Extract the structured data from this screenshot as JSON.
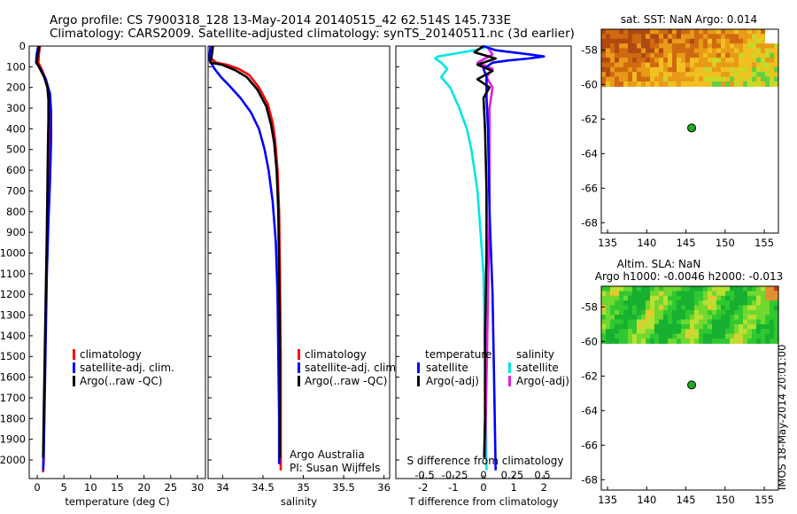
{
  "header": {
    "line1": "Argo profile: CS 7900318_128 13-May-2014 20140515_42 62.514S 145.733E",
    "line2": "Climatology: CARS2009. Satellite-adjusted climatology: synTS_20140511.nc (3d earlier)"
  },
  "colors": {
    "climatology": "#ff0000",
    "satellite": "#0000ff",
    "argo": "#000000",
    "s_satellite": "#00e5e5",
    "s_argo": "#e020e0",
    "marker": "#22aa22"
  },
  "chart_data": [
    {
      "type": "line",
      "id": "temperature",
      "xlabel": "temperature (deg C)",
      "xticks": [
        0,
        5,
        10,
        15,
        20,
        25,
        30
      ],
      "xlim": [
        -1.5,
        31.5
      ],
      "ylim": [
        0,
        2090
      ],
      "yticks": [
        0,
        100,
        200,
        300,
        400,
        500,
        600,
        700,
        800,
        900,
        1000,
        1100,
        1200,
        1300,
        1400,
        1500,
        1600,
        1700,
        1800,
        1900,
        2000
      ],
      "legend": [
        "climatology",
        "satellite-adj. clim.",
        "Argo(..raw -QC)"
      ],
      "series": [
        {
          "name": "climatology",
          "color": "#ff0000",
          "points": [
            [
              0.5,
              0
            ],
            [
              0.3,
              40
            ],
            [
              0.2,
              80
            ],
            [
              0.8,
              110
            ],
            [
              1.6,
              160
            ],
            [
              2.1,
              220
            ],
            [
              2.2,
              300
            ],
            [
              2.2,
              420
            ],
            [
              2.1,
              600
            ],
            [
              2.0,
              800
            ],
            [
              1.8,
              1000
            ],
            [
              1.6,
              1300
            ],
            [
              1.4,
              1600
            ],
            [
              1.2,
              1900
            ],
            [
              1.1,
              2060
            ]
          ]
        },
        {
          "name": "satellite-adj. clim.",
          "color": "#0000ff",
          "points": [
            [
              0.2,
              0
            ],
            [
              -0.1,
              40
            ],
            [
              -0.2,
              80
            ],
            [
              0.5,
              105
            ],
            [
              1.6,
              160
            ],
            [
              2.4,
              230
            ],
            [
              2.6,
              320
            ],
            [
              2.6,
              450
            ],
            [
              2.4,
              650
            ],
            [
              2.1,
              850
            ],
            [
              1.8,
              1100
            ],
            [
              1.6,
              1400
            ],
            [
              1.4,
              1700
            ],
            [
              1.2,
              2000
            ],
            [
              1.1,
              2050
            ]
          ]
        },
        {
          "name": "Argo(..raw -QC)",
          "color": "#000000",
          "points": [
            [
              0.4,
              0
            ],
            [
              0.1,
              40
            ],
            [
              -0.1,
              80
            ],
            [
              0.4,
              105
            ],
            [
              1.3,
              150
            ],
            [
              1.9,
              200
            ],
            [
              2.1,
              260
            ],
            [
              2.1,
              350
            ],
            [
              2.0,
              500
            ],
            [
              1.9,
              700
            ],
            [
              1.8,
              900
            ],
            [
              1.6,
              1200
            ],
            [
              1.4,
              1500
            ],
            [
              1.2,
              1800
            ],
            [
              1.1,
              1990
            ]
          ]
        }
      ]
    },
    {
      "type": "line",
      "id": "salinity",
      "xlabel": "salinity",
      "xticks": [
        34,
        34.5,
        35,
        35.5,
        36
      ],
      "xlim": [
        33.82,
        36.07
      ],
      "ylim": [
        0,
        2090
      ],
      "legend": [
        "climatology",
        "satellite-adj. clim.",
        "Argo(..raw -QC)"
      ],
      "annotation": [
        "Argo Australia",
        "PI: Susan Wijffels"
      ],
      "series": [
        {
          "name": "climatology",
          "color": "#ff0000",
          "points": [
            [
              33.88,
              0
            ],
            [
              33.86,
              60
            ],
            [
              33.92,
              80
            ],
            [
              34.05,
              90
            ],
            [
              34.2,
              110
            ],
            [
              34.33,
              140
            ],
            [
              34.45,
              200
            ],
            [
              34.56,
              280
            ],
            [
              34.62,
              370
            ],
            [
              34.65,
              450
            ],
            [
              34.68,
              600
            ],
            [
              34.7,
              800
            ],
            [
              34.71,
              1100
            ],
            [
              34.72,
              1500
            ],
            [
              34.72,
              2050
            ]
          ]
        },
        {
          "name": "satellite-adj. clim.",
          "color": "#0000ff",
          "points": [
            [
              33.85,
              0
            ],
            [
              33.84,
              40
            ],
            [
              33.84,
              70
            ],
            [
              33.9,
              110
            ],
            [
              33.98,
              150
            ],
            [
              34.08,
              190
            ],
            [
              34.22,
              250
            ],
            [
              34.35,
              320
            ],
            [
              34.45,
              400
            ],
            [
              34.52,
              500
            ],
            [
              34.57,
              600
            ],
            [
              34.62,
              750
            ],
            [
              34.66,
              950
            ],
            [
              34.68,
              1200
            ],
            [
              34.69,
              1500
            ],
            [
              34.7,
              1800
            ],
            [
              34.7,
              2020
            ]
          ]
        },
        {
          "name": "Argo(..raw -QC)",
          "color": "#000000",
          "points": [
            [
              33.88,
              0
            ],
            [
              33.86,
              60
            ],
            [
              33.85,
              80
            ],
            [
              33.99,
              90
            ],
            [
              34.15,
              115
            ],
            [
              34.3,
              150
            ],
            [
              34.43,
              210
            ],
            [
              34.54,
              290
            ],
            [
              34.6,
              380
            ],
            [
              34.64,
              470
            ],
            [
              34.67,
              600
            ],
            [
              34.69,
              800
            ],
            [
              34.7,
              1100
            ],
            [
              34.71,
              1500
            ],
            [
              34.71,
              1990
            ]
          ]
        }
      ]
    },
    {
      "type": "line",
      "id": "difference",
      "xlabel": "T difference from climatology",
      "xticks": [
        -2,
        -1,
        0,
        1,
        2
      ],
      "xlim": [
        -2.9,
        2.9
      ],
      "top_axis_label": "S difference from climatology",
      "top_ticks": [
        {
          "label": "-0.5",
          "t": -1.95
        },
        {
          "label": "-0.25",
          "t": -0.95
        },
        {
          "label": "0",
          "t": 0
        },
        {
          "label": "0.25",
          "t": 0.95
        },
        {
          "label": "0.5",
          "t": 1.95
        }
      ],
      "ylim": [
        0,
        2090
      ],
      "legend": {
        "temperature": [
          "satellite",
          "Argo(-adj)"
        ],
        "salinity": [
          "satellite",
          "Argo(-adj)"
        ]
      },
      "series": [
        {
          "name": "satellite (S)",
          "color": "#00e5e5",
          "points": [
            [
              0.2,
              0
            ],
            [
              -0.3,
              20
            ],
            [
              -1.5,
              50
            ],
            [
              -1.6,
              60
            ],
            [
              -1.4,
              80
            ],
            [
              -1.2,
              110
            ],
            [
              -1.4,
              150
            ],
            [
              -1.1,
              200
            ],
            [
              -0.8,
              300
            ],
            [
              -0.55,
              400
            ],
            [
              -0.4,
              500
            ],
            [
              -0.3,
              600
            ],
            [
              -0.2,
              700
            ],
            [
              -0.1,
              900
            ],
            [
              0,
              1100
            ],
            [
              0.05,
              1500
            ],
            [
              0.1,
              2050
            ]
          ]
        },
        {
          "name": "Argo(-adj) (S)",
          "color": "#e020e0",
          "points": [
            [
              0.1,
              0
            ],
            [
              0.3,
              40
            ],
            [
              -0.2,
              80
            ],
            [
              0.3,
              110
            ],
            [
              0.1,
              150
            ],
            [
              0.3,
              200
            ],
            [
              0.2,
              300
            ],
            [
              0.2,
              500
            ],
            [
              0.2,
              800
            ],
            [
              0.15,
              1200
            ],
            [
              0.1,
              1600
            ],
            [
              0.05,
              1990
            ]
          ]
        },
        {
          "name": "satellite (T)",
          "color": "#0000ff",
          "points": [
            [
              0,
              0
            ],
            [
              0.4,
              20
            ],
            [
              1.5,
              40
            ],
            [
              2.0,
              50
            ],
            [
              1.5,
              60
            ],
            [
              0.8,
              70
            ],
            [
              0.3,
              80
            ],
            [
              0,
              110
            ],
            [
              0.1,
              150
            ],
            [
              0.1,
              250
            ],
            [
              0.15,
              400
            ],
            [
              0.2,
              800
            ],
            [
              0.3,
              1200
            ],
            [
              0.35,
              1600
            ],
            [
              0.4,
              2050
            ]
          ]
        },
        {
          "name": "Argo(-adj) (T)",
          "color": "#000000",
          "points": [
            [
              0,
              0
            ],
            [
              -0.3,
              30
            ],
            [
              0.4,
              60
            ],
            [
              -0.2,
              90
            ],
            [
              0.3,
              120
            ],
            [
              -0.2,
              160
            ],
            [
              0.2,
              200
            ],
            [
              0,
              250
            ],
            [
              0.05,
              400
            ],
            [
              0.1,
              700
            ],
            [
              0.1,
              1000
            ],
            [
              0.05,
              1400
            ],
            [
              0.05,
              1800
            ],
            [
              0.02,
              1990
            ]
          ]
        }
      ]
    },
    {
      "type": "heatmap",
      "id": "sst",
      "title": "sat. SST: NaN Argo: 0.014",
      "xticks": [
        135,
        140,
        145,
        150,
        155
      ],
      "yticks": [
        -58,
        -60,
        -62,
        -64,
        -66,
        -68
      ],
      "xlim": [
        134.2,
        156.8
      ],
      "ylim": [
        -68.6,
        -56.8
      ],
      "data_extent": [
        -60.1,
        -56.8
      ],
      "argo_position": [
        145.733,
        -62.514
      ]
    },
    {
      "type": "heatmap",
      "id": "sla",
      "title": "Altim. SLA: NaN",
      "subtitle": "Argo h1000: -0.0046 h2000: -0.013",
      "xticks": [
        135,
        140,
        145,
        150,
        155
      ],
      "yticks": [
        -58,
        -60,
        -62,
        -64,
        -66,
        -68
      ],
      "xlim": [
        134.2,
        156.8
      ],
      "ylim": [
        -68.6,
        -56.8
      ],
      "data_extent": [
        -60.1,
        -56.8
      ],
      "argo_position": [
        145.733,
        -62.514
      ]
    }
  ],
  "footer": {
    "stamp": "IMOS 18-May-2014 20:01:00"
  }
}
